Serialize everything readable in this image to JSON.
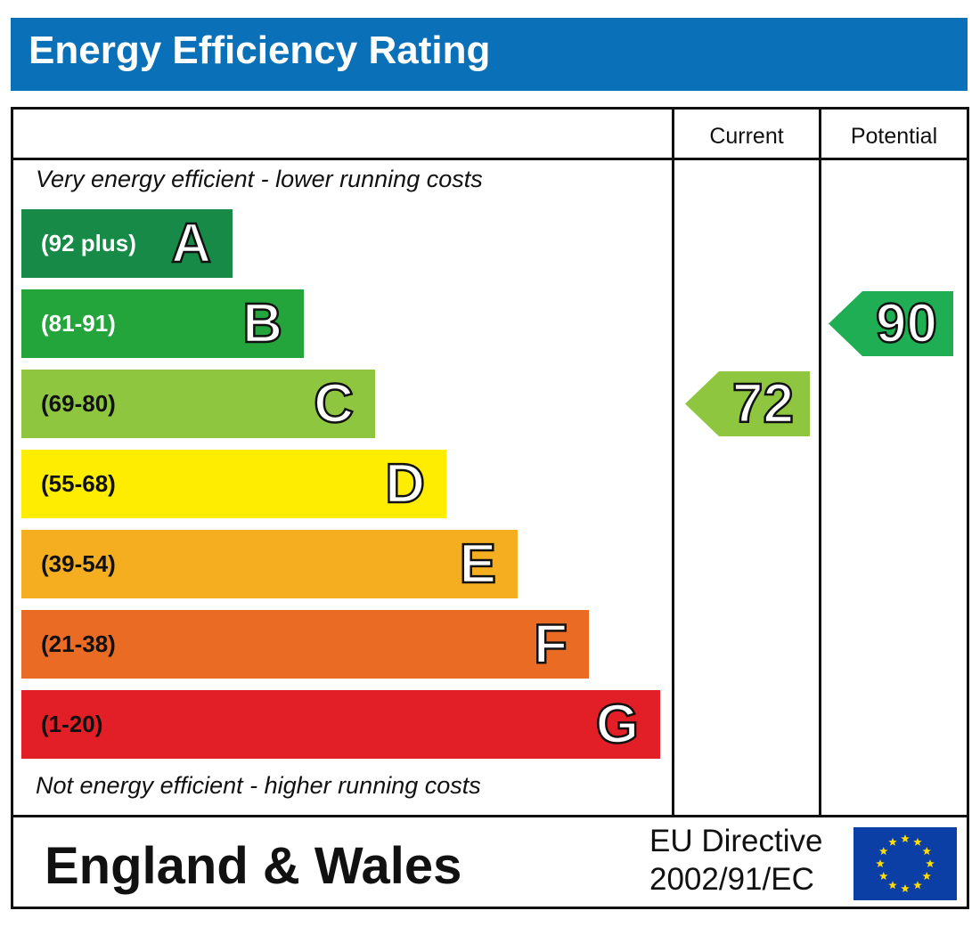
{
  "header": {
    "title": "Energy Efficiency Rating"
  },
  "columns": {
    "current": "Current",
    "potential": "Potential"
  },
  "notes": {
    "top": "Very energy efficient - lower running costs",
    "bottom": "Not energy efficient - higher running costs"
  },
  "bands": [
    {
      "letter": "A",
      "range": "(92 plus)",
      "color": "#168a46",
      "range_color": "#ffffff"
    },
    {
      "letter": "B",
      "range": "(81-91)",
      "color": "#23a53c",
      "range_color": "#ffffff"
    },
    {
      "letter": "C",
      "range": "(69-80)",
      "color": "#8ec63f",
      "range_color": "#111111"
    },
    {
      "letter": "D",
      "range": "(55-68)",
      "color": "#ffed00",
      "range_color": "#111111"
    },
    {
      "letter": "E",
      "range": "(39-54)",
      "color": "#f6ae21",
      "range_color": "#111111"
    },
    {
      "letter": "F",
      "range": "(21-38)",
      "color": "#ea6b24",
      "range_color": "#111111"
    },
    {
      "letter": "G",
      "range": "(1-20)",
      "color": "#e21f26",
      "range_color": "#111111"
    }
  ],
  "chart_data": {
    "type": "bar",
    "title": "Energy Efficiency Rating",
    "categories": [
      "A",
      "B",
      "C",
      "D",
      "E",
      "F",
      "G"
    ],
    "ranges": [
      "(92 plus)",
      "(81-91)",
      "(69-80)",
      "(55-68)",
      "(39-54)",
      "(21-38)",
      "(1-20)"
    ],
    "current": {
      "value": 72,
      "band": "C",
      "color": "#8ec63f"
    },
    "potential": {
      "value": 90,
      "band": "B",
      "color": "#1fae53"
    }
  },
  "footer": {
    "region": "England & Wales",
    "directive_line1": "EU Directive",
    "directive_line2": "2002/91/EC",
    "flag_color": "#0b3fa6",
    "star_color": "#ffdd00"
  }
}
